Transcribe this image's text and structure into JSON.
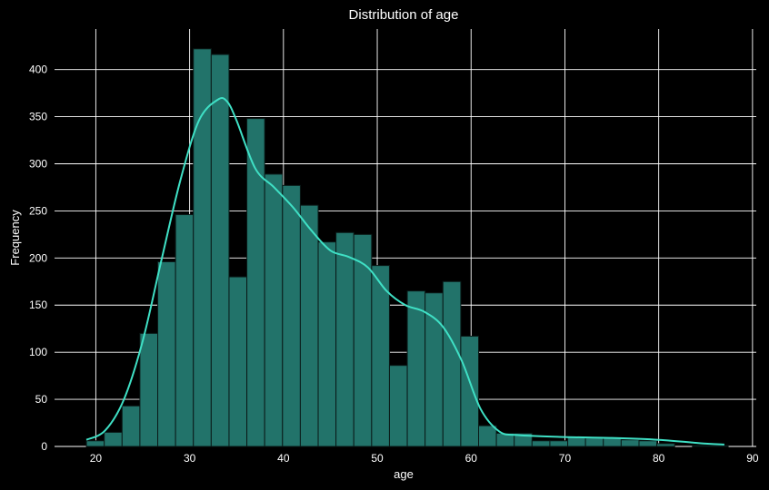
{
  "chart_data": {
    "type": "bar",
    "title": "Distribution of age",
    "xlabel": "age",
    "ylabel": "Frequency",
    "xlim": [
      15.6,
      90.4
    ],
    "ylim": [
      0,
      443
    ],
    "xticks": [
      20,
      30,
      40,
      50,
      60,
      70,
      80,
      90
    ],
    "yticks": [
      0,
      50,
      100,
      150,
      200,
      250,
      300,
      350,
      400
    ],
    "grid": true,
    "bin_edges": [
      19,
      20.9,
      22.8,
      24.7,
      26.6,
      28.5,
      30.4,
      32.3,
      34.2,
      36.1,
      38.0,
      39.9,
      41.8,
      43.7,
      45.6,
      47.5,
      49.4,
      51.3,
      53.2,
      55.1,
      57.0,
      58.9,
      60.8,
      62.7,
      64.6,
      66.5,
      68.4,
      70.3,
      72.2,
      74.1,
      76.0,
      77.9,
      79.8,
      81.7,
      83.6,
      85.5,
      87.4
    ],
    "values": [
      6,
      15,
      43,
      120,
      196,
      246,
      422,
      416,
      180,
      348,
      289,
      277,
      256,
      217,
      227,
      225,
      192,
      86,
      165,
      163,
      175,
      117,
      22,
      14,
      14,
      6,
      6,
      10,
      9,
      9,
      7,
      6,
      3,
      0,
      1,
      1
    ],
    "kde": {
      "x": [
        19,
        21,
        23,
        25,
        27,
        29,
        31,
        33,
        34,
        35,
        37,
        39,
        41,
        43,
        45,
        47,
        49,
        51,
        53,
        55,
        57,
        59,
        61,
        63,
        65,
        70,
        75,
        80,
        85,
        87
      ],
      "y": [
        7,
        17,
        50,
        112,
        198,
        282,
        346,
        368,
        366,
        346,
        295,
        275,
        254,
        229,
        208,
        201,
        190,
        165,
        150,
        143,
        127,
        91,
        40,
        16,
        12,
        10,
        9,
        7,
        3,
        2
      ]
    },
    "colors": {
      "bar_fill": "#22736a",
      "bar_edge": "#0a1a18",
      "kde_line": "#3fe0c5",
      "grid": "#ffffff",
      "background": "#000000",
      "text": "#ffffff"
    }
  }
}
